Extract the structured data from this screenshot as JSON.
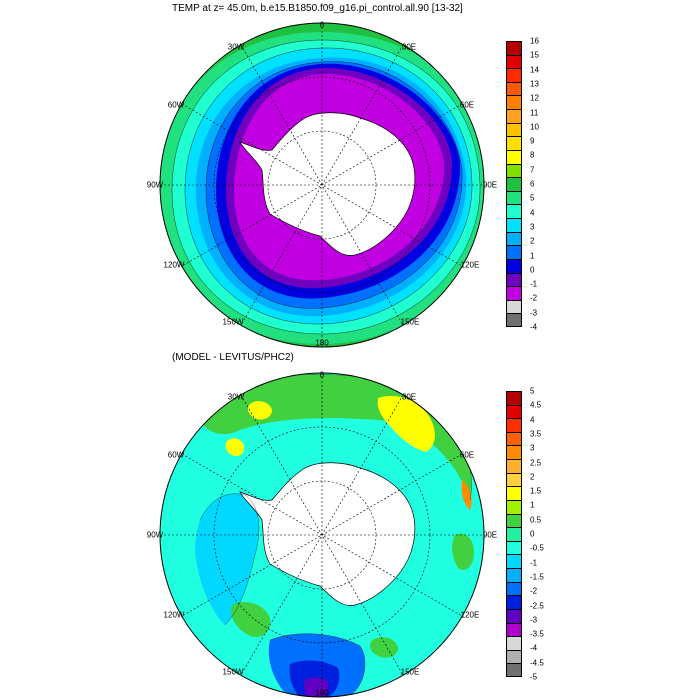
{
  "top_panel": {
    "title": "TEMP at z=  45.0m, b.e15.B1850.f09_g16.pi_control.all.90 [13-32]",
    "lon_labels": [
      "0",
      "30E",
      "60E",
      "90E",
      "120E",
      "150E",
      "180",
      "150W",
      "120W",
      "90W",
      "60W",
      "30W"
    ],
    "colorbar": {
      "labels": [
        "16",
        "15",
        "14",
        "13",
        "12",
        "11",
        "10",
        "9",
        "8",
        "7",
        "6",
        "5",
        "4",
        "3",
        "2",
        "1",
        "0",
        "-1",
        "-2",
        "-3",
        "-4"
      ],
      "colors": [
        "#b40000",
        "#e00000",
        "#ff2a00",
        "#ff5a00",
        "#ff8000",
        "#ffa020",
        "#ffc000",
        "#ffe000",
        "#ffff00",
        "#80e000",
        "#20c040",
        "#20e080",
        "#20ffd0",
        "#00e0ff",
        "#00b0ff",
        "#0070ff",
        "#0000e0",
        "#7000c0",
        "#c000e0",
        "#d8d8d8",
        "#707070"
      ]
    }
  },
  "bottom_panel": {
    "title": "(MODEL - LEVITUS/PHC2)",
    "lon_labels": [
      "0",
      "30E",
      "60E",
      "90E",
      "120E",
      "150E",
      "180",
      "150W",
      "120W",
      "90W",
      "60W",
      "30W"
    ],
    "colorbar": {
      "labels": [
        "5",
        "4.5",
        "4",
        "3.5",
        "3",
        "2.5",
        "2",
        "1.5",
        "1",
        "0.5",
        "0",
        "-0.5",
        "-1",
        "-1.5",
        "-2",
        "-2.5",
        "-3",
        "-3.5",
        "-4",
        "-4.5",
        "-5"
      ],
      "colors": [
        "#b40000",
        "#e00000",
        "#ff3000",
        "#ff6000",
        "#ff8c00",
        "#ffb030",
        "#ffd040",
        "#ffff00",
        "#a0f000",
        "#40d040",
        "#20f0a0",
        "#20ffe0",
        "#00d8ff",
        "#00b0ff",
        "#0070ff",
        "#0020e0",
        "#6000c0",
        "#b000d0",
        "#d8d8d8",
        "#b0b0b0",
        "#707070"
      ]
    }
  },
  "colors": {
    "land": "#ffffff",
    "coast": "#000000",
    "grid": "#000000"
  }
}
